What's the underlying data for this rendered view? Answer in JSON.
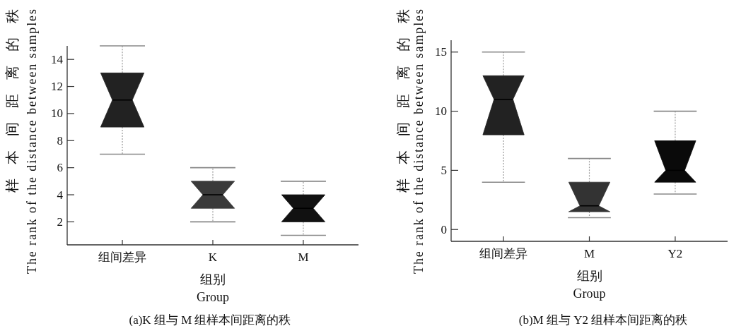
{
  "chart_data": [
    {
      "type": "box",
      "title": "(a)K 组与 M 组样本间距离的秩",
      "xlabel": "组别\nGroup",
      "ylabel": "样本间距离的秩\nThe rank of the distance between samples",
      "categories": [
        "组间差异",
        "K",
        "M"
      ],
      "boxes": [
        {
          "low": 7,
          "q1": 9,
          "median": 11,
          "q3": 13,
          "high": 15
        },
        {
          "low": 2,
          "q1": 3,
          "median": 4,
          "q3": 5,
          "high": 6
        },
        {
          "low": 1,
          "q1": 2,
          "median": 3,
          "q3": 4,
          "high": 5
        }
      ],
      "colors": [
        "#222222",
        "#3a3a3a",
        "#111111"
      ],
      "ylim": [
        0.3,
        15
      ],
      "yticks": [
        2,
        4,
        6,
        8,
        10,
        12,
        14
      ]
    },
    {
      "type": "box",
      "title": "(b)M 组与 Y2 组样本间距离的秩",
      "xlabel": "组别\nGroup",
      "ylabel": "样本间距离的秩\nThe rank of the distance between samples",
      "categories": [
        "组间差异",
        "M",
        "Y2"
      ],
      "boxes": [
        {
          "low": 4,
          "q1": 8,
          "median": 11,
          "q3": 13,
          "high": 15
        },
        {
          "low": 1,
          "q1": 1.5,
          "median": 2,
          "q3": 4,
          "high": 6
        },
        {
          "low": 3,
          "q1": 4,
          "median": 5,
          "q3": 7.5,
          "high": 10
        }
      ],
      "colors": [
        "#222222",
        "#333333",
        "#0a0a0a"
      ],
      "ylim": [
        -1,
        16
      ],
      "yticks": [
        0,
        5,
        10,
        15
      ]
    }
  ]
}
